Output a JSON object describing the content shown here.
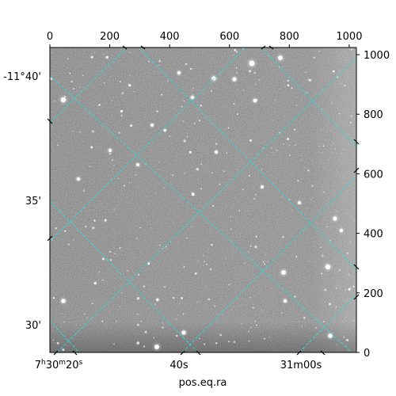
{
  "figure": {
    "xlabel": "pos.eq.ra",
    "top_axis_ticks": [
      "0",
      "200",
      "400",
      "600",
      "800",
      "1000"
    ],
    "top_axis_values": [
      0,
      200,
      400,
      600,
      800,
      1000
    ],
    "right_axis_ticks": [
      "0",
      "200",
      "400",
      "600",
      "800",
      "1000"
    ],
    "right_axis_values": [
      0,
      200,
      400,
      600,
      800,
      1000
    ],
    "pixel_range": [
      0,
      1024
    ],
    "left_axis_ticks": [
      "-11°40'",
      "35'",
      "30'"
    ],
    "bottom_axis_ticks": [
      "40s",
      "31m00s"
    ],
    "bottom_first_tick": {
      "hours": "7",
      "h": "h",
      "minutes": "30",
      "m": "m",
      "seconds": "20",
      "s": "s"
    },
    "grid_color": "#33d6d6",
    "image_colormap": "grayscale"
  }
}
